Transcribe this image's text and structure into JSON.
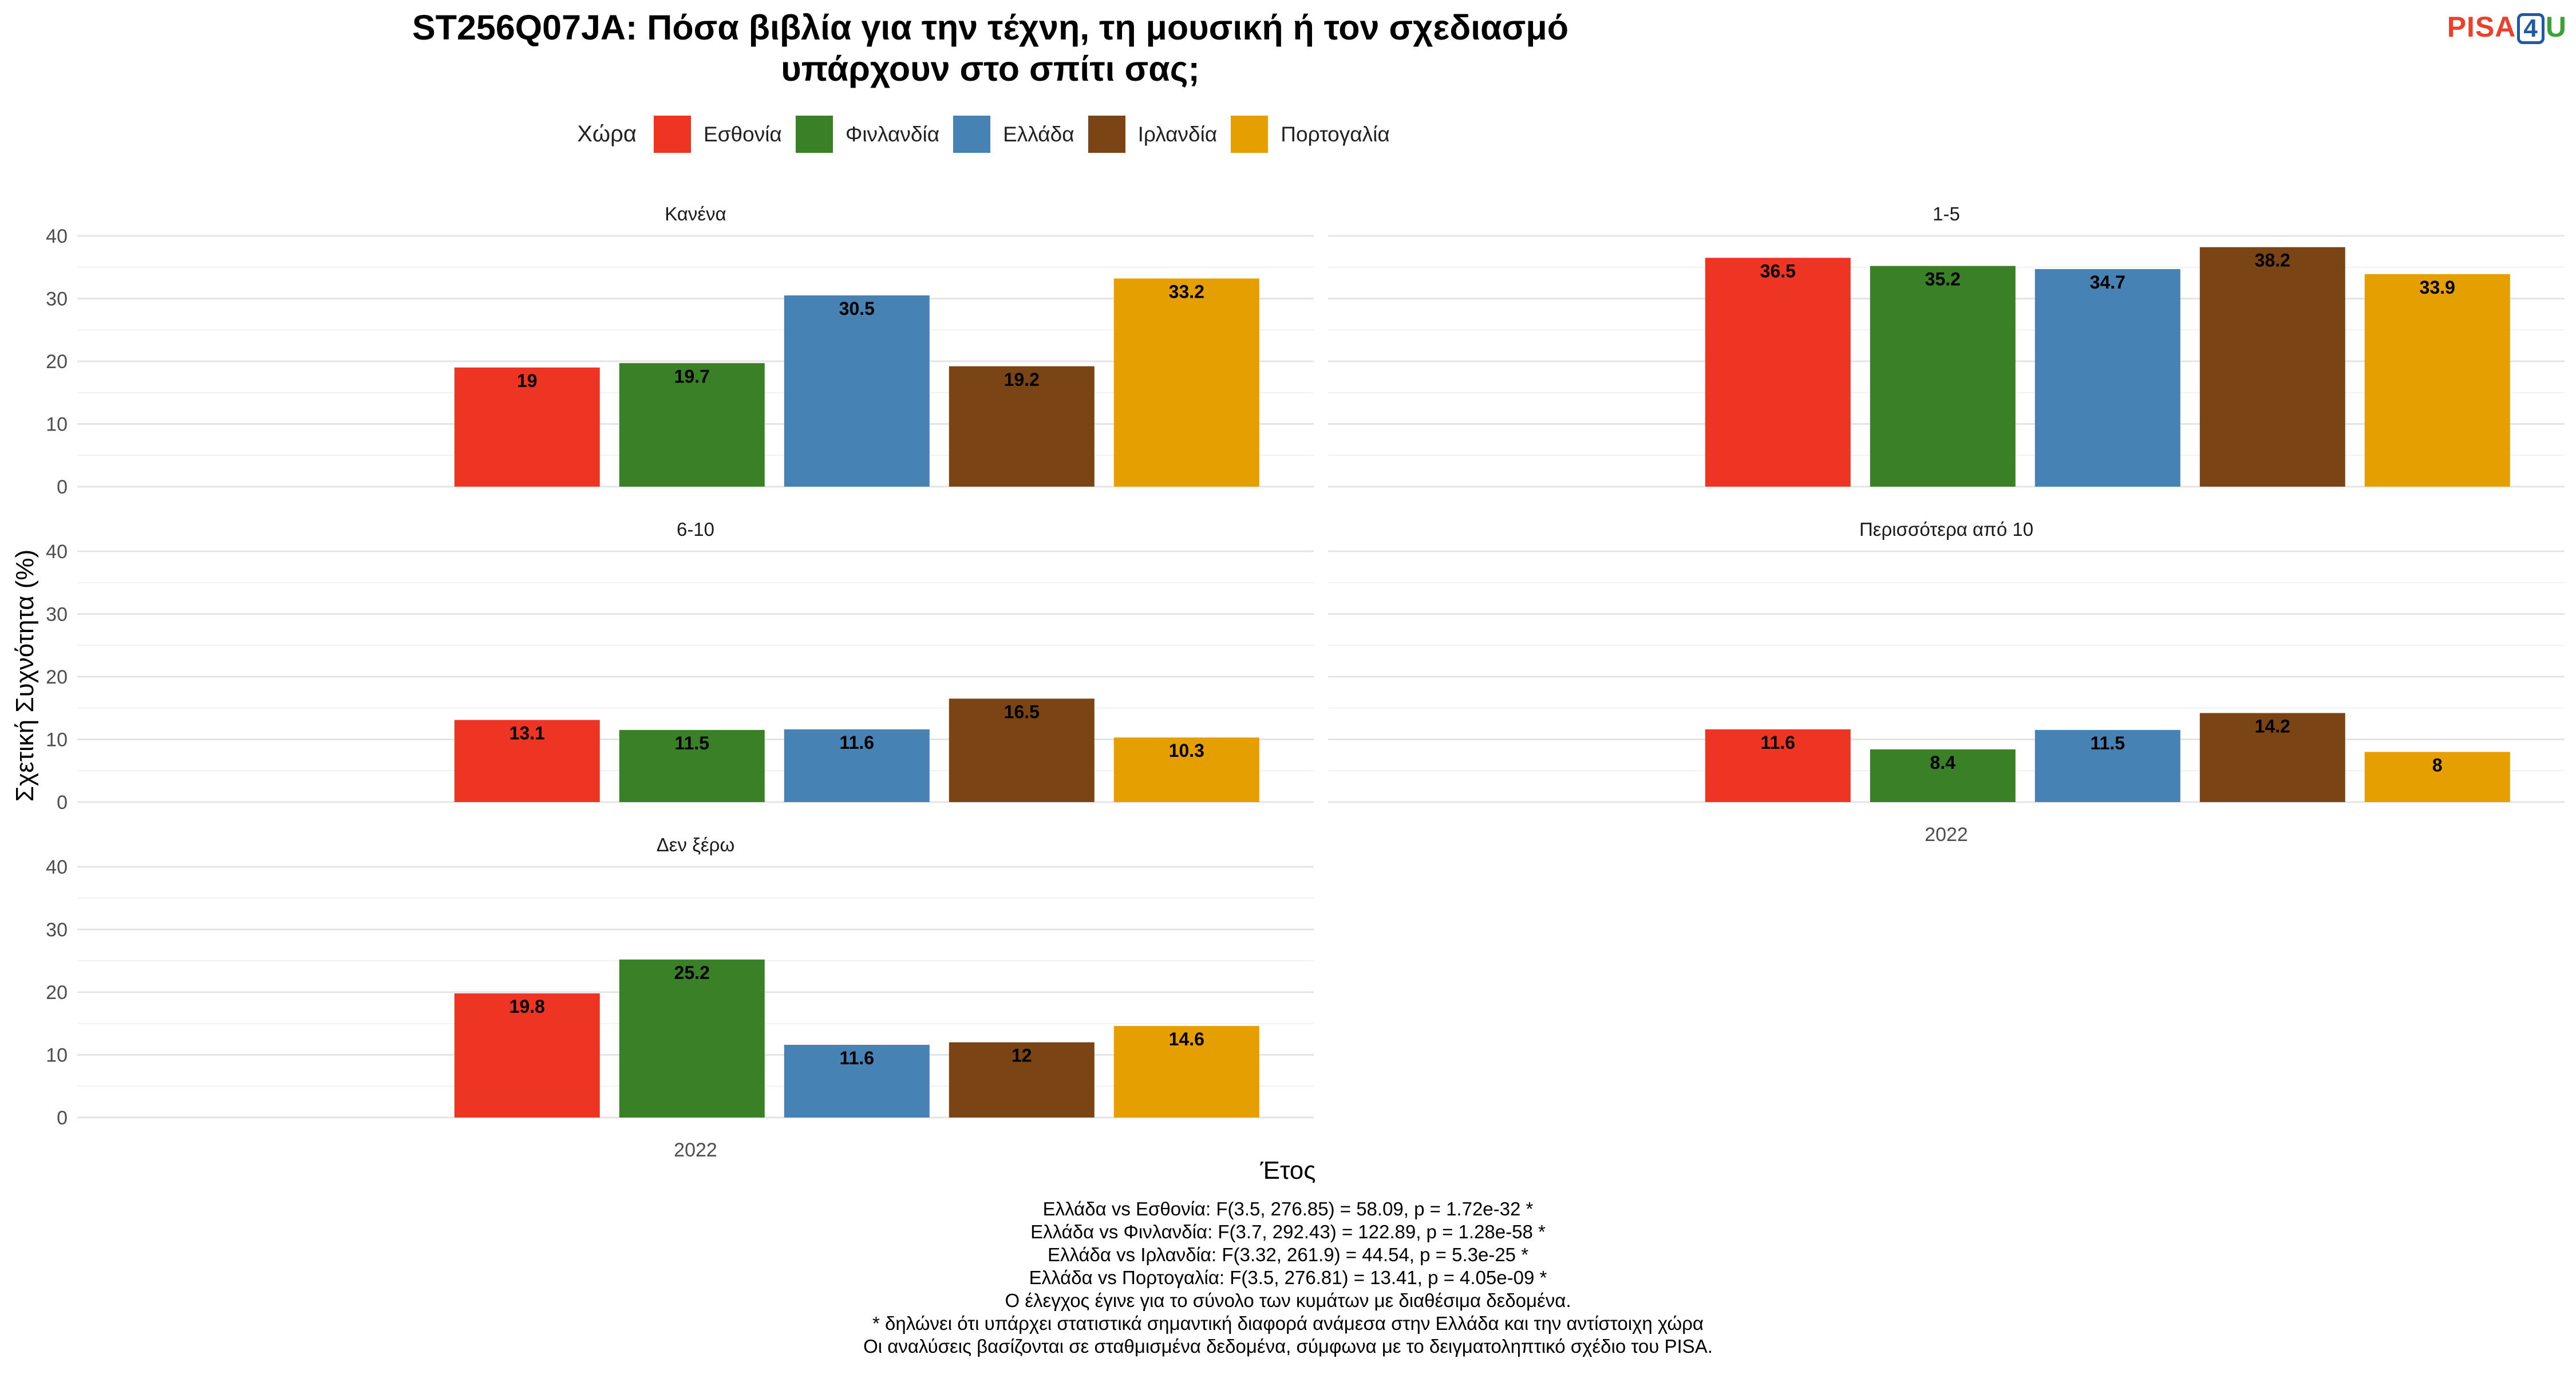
{
  "title_lines": [
    "ST256Q07JA: Πόσα βιβλία για την τέχνη, τη μουσική ή τον σχεδιασμό",
    "υπάρχουν στο σπίτι σας;"
  ],
  "logo": {
    "p": "PISA",
    "four": "4",
    "u": "U"
  },
  "legend": {
    "title": "Χώρα",
    "items": [
      {
        "label": "Εσθονία",
        "color": "#ee3524"
      },
      {
        "label": "Φινλανδία",
        "color": "#3a8027"
      },
      {
        "label": "Ελλάδα",
        "color": "#4682b4"
      },
      {
        "label": "Ιρλανδία",
        "color": "#7a4415"
      },
      {
        "label": "Πορτογαλία",
        "color": "#e69f00"
      }
    ]
  },
  "axis": {
    "ylabel": "Σχετική Συχνότητα (%)",
    "xlabel": "Έτος"
  },
  "notes": [
    "Ελλάδα vs Εσθονία: F(3.5, 276.85) = 58.09, p = 1.72e-32 *",
    "Ελλάδα vs Φινλανδία: F(3.7, 292.43) = 122.89, p = 1.28e-58 *",
    "Ελλάδα vs Ιρλανδία: F(3.32, 261.9) = 44.54, p = 5.3e-25 *",
    "Ελλάδα vs Πορτογαλία: F(3.5, 276.81) = 13.41, p = 4.05e-09 *",
    "Ο έλεγχος έγινε για το σύνολο των κυμάτων με διαθέσιμα δεδομένα.",
    "* δηλώνει ότι υπάρχει στατιστικά σημαντική διαφορά ανάμεσα στην Ελλάδα και την αντίστοιχη χώρα",
    "Οι αναλύσεις βασίζονται σε σταθμισμένα δεδομένα, σύμφωνα με το δειγματοληπτικό σχέδιο του PISA."
  ],
  "chart_data": {
    "type": "bar",
    "x": "2022",
    "ylim": [
      0,
      40
    ],
    "yticks": [
      0,
      10,
      20,
      30,
      40
    ],
    "grid": true,
    "legend_position": "top",
    "series_names": [
      "Εσθονία",
      "Φινλανδία",
      "Ελλάδα",
      "Ιρλανδία",
      "Πορτογαλία"
    ],
    "panels": [
      {
        "label": "Κανένα",
        "values": [
          19,
          19.7,
          30.5,
          19.2,
          33.2
        ]
      },
      {
        "label": "1-5",
        "values": [
          36.5,
          35.2,
          34.7,
          38.2,
          33.9
        ]
      },
      {
        "label": "6-10",
        "values": [
          13.1,
          11.5,
          11.6,
          16.5,
          10.3
        ]
      },
      {
        "label": "Περισσότερα από 10",
        "values": [
          11.6,
          8.4,
          11.5,
          14.2,
          8
        ]
      },
      {
        "label": "Δεν ξέρω",
        "values": [
          19.8,
          25.2,
          11.6,
          12,
          14.6
        ]
      }
    ]
  }
}
